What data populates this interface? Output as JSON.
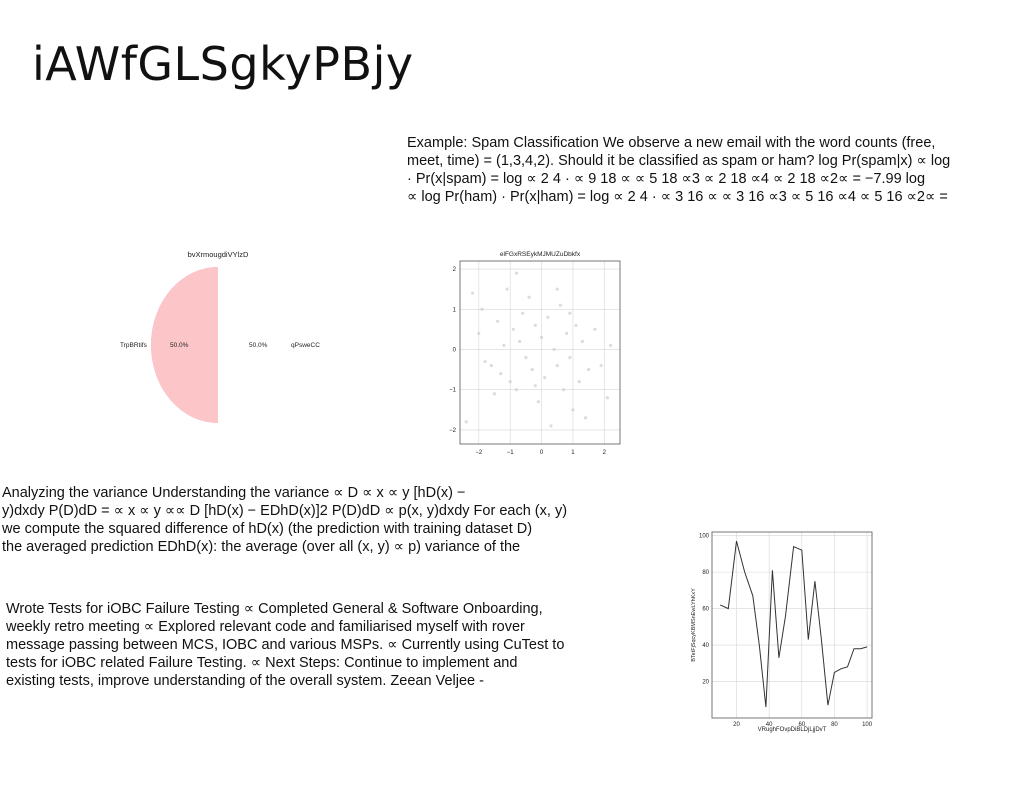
{
  "title": "iAWfGLSgkyPBjy",
  "spam_block": {
    "lines": [
      "Example: Spam Classification We observe a new email with the word counts (free,",
      "meet, time) = (1,3,4,2). Should it be classified as spam or ham? log Pr(spam|x) ∝ log",
      "· Pr(x|spam) = log ∝ 2 4 · ∝ 9 18 ∝ ∝ 5 18 ∝3 ∝ 2 18 ∝4 ∝ 2 18 ∝2∝ = −7.99 log",
      "∝ log Pr(ham) · Pr(x|ham) = log ∝ 2 4 · ∝ 3 16 ∝ ∝ 3 16 ∝3 ∝ 5 16 ∝4 ∝ 5 16 ∝2∝ ="
    ]
  },
  "variance_block": {
    "lines": [
      "Analyzing the variance Understanding the variance ∝ D ∝ x ∝ y [hD(x) −",
      "y)dxdy P(D)dD = ∝ x ∝ y ∝∝ D [hD(x) − EDhD(x)]2 P(D)dD ∝ p(x, y)dxdy For each (x, y)",
      "we compute the squared difference of hD(x) (the prediction with training dataset D)",
      "the averaged prediction EDhD(x): the average (over all (x, y) ∝ p) variance of the"
    ]
  },
  "iobc_block": {
    "lines": [
      "Wrote Tests for iOBC Failure Testing ∝ Completed General & Software Onboarding,",
      "weekly retro meeting ∝ Explored relevant code and familiarised myself with rover",
      "message passing between MCS, IOBC and various MSPs. ∝ Currently using CuTest to",
      "tests for iOBC related Failure Testing. ∝ Next Steps: Continue to implement and",
      "existing tests, improve understanding of the overall system. Zeean Veljee -"
    ]
  },
  "chart_data": [
    {
      "type": "pie",
      "title": "bvXrmougdiVYlzD",
      "labels": [
        "TrpBRtifs",
        "qPsweCC"
      ],
      "values": [
        50.0,
        50.0
      ],
      "pct_labels": [
        "50.0%",
        "50.0%"
      ],
      "colors": [
        "#f59ae8",
        "#fcc6c9"
      ]
    },
    {
      "type": "scatter",
      "title": "elFGxRSEykMJMUZuDbkfx",
      "xlim": [
        -2.6,
        2.5
      ],
      "ylim": [
        -2.35,
        2.2
      ],
      "xticks": [
        "−2",
        "−1",
        "0",
        "1",
        "2"
      ],
      "yticks": [
        "2",
        "1",
        "0",
        "−1",
        "−2"
      ],
      "grid": true,
      "color": "#c9ced6",
      "points": [
        [
          -2.4,
          -1.8
        ],
        [
          -2.2,
          1.4
        ],
        [
          -2.0,
          0.4
        ],
        [
          -1.8,
          -0.3
        ],
        [
          -1.6,
          -0.4
        ],
        [
          -1.4,
          0.7
        ],
        [
          -1.3,
          -0.6
        ],
        [
          -1.2,
          0.1
        ],
        [
          -1.1,
          1.5
        ],
        [
          -1.0,
          -0.8
        ],
        [
          -0.9,
          0.5
        ],
        [
          -0.8,
          -1.0
        ],
        [
          -0.7,
          0.2
        ],
        [
          -0.6,
          0.9
        ],
        [
          -0.5,
          -0.2
        ],
        [
          -0.4,
          1.3
        ],
        [
          -0.3,
          -0.5
        ],
        [
          -0.2,
          0.6
        ],
        [
          -0.1,
          -1.3
        ],
        [
          0.0,
          0.3
        ],
        [
          0.1,
          -0.7
        ],
        [
          0.2,
          0.8
        ],
        [
          0.3,
          -1.9
        ],
        [
          0.4,
          0.0
        ],
        [
          0.5,
          -0.4
        ],
        [
          0.6,
          1.1
        ],
        [
          0.7,
          -1.0
        ],
        [
          0.8,
          0.4
        ],
        [
          0.9,
          -0.2
        ],
        [
          1.0,
          -1.5
        ],
        [
          1.1,
          0.6
        ],
        [
          1.2,
          -0.8
        ],
        [
          1.3,
          0.2
        ],
        [
          1.5,
          -0.5
        ],
        [
          1.7,
          0.5
        ],
        [
          1.9,
          -0.4
        ],
        [
          2.1,
          -1.2
        ],
        [
          2.2,
          0.1
        ],
        [
          -0.8,
          1.9
        ],
        [
          0.5,
          1.5
        ],
        [
          -1.5,
          -1.1
        ],
        [
          1.4,
          -1.7
        ],
        [
          -0.2,
          -0.9
        ],
        [
          0.9,
          0.9
        ],
        [
          -1.9,
          1.0
        ]
      ]
    },
    {
      "type": "line",
      "title": "",
      "xlabel": "VRughFOvpDiBLDjLjjDvT",
      "ylabel": "BTetFjSqcyKBMSnEwLYhKxY",
      "xlim": [
        5,
        103
      ],
      "ylim": [
        0,
        102
      ],
      "xticks": [
        20,
        40,
        60,
        80,
        100
      ],
      "yticks": [
        20,
        40,
        60,
        80,
        100
      ],
      "grid": true,
      "color": "#333333",
      "x": [
        10,
        15,
        20,
        25,
        30,
        34,
        38,
        42,
        46,
        50,
        55,
        60,
        64,
        68,
        72,
        76,
        80,
        84,
        88,
        92,
        96,
        100
      ],
      "y": [
        62,
        60,
        97,
        80,
        67,
        40,
        6,
        81,
        33,
        56,
        94,
        92,
        43,
        75,
        43,
        7,
        25,
        27,
        28,
        38,
        38,
        39
      ]
    }
  ]
}
